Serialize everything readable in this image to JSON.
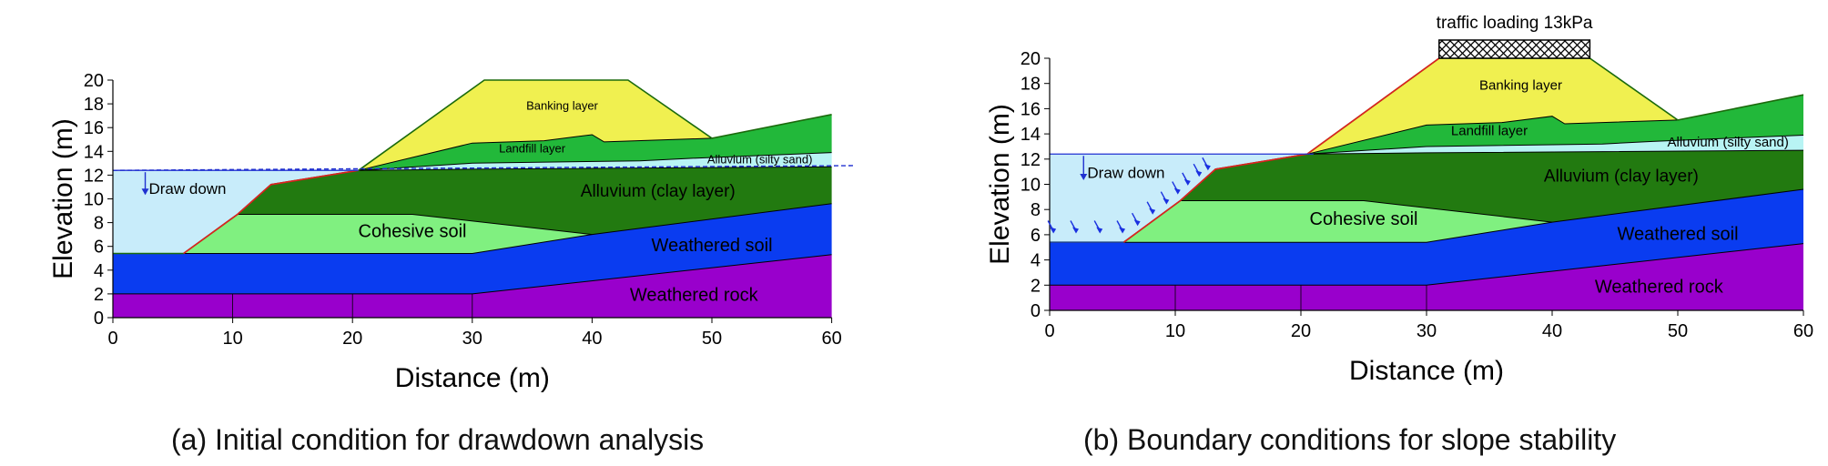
{
  "panels": [
    {
      "id": "a",
      "caption": "(a) Initial condition for drawdown analysis",
      "xlabel": "Distance (m)",
      "ylabel": "Elevation (m)",
      "xticks": [
        "0",
        "10",
        "20",
        "30",
        "40",
        "50",
        "60"
      ],
      "yticks": [
        "0",
        "2",
        "4",
        "6",
        "8",
        "10",
        "12",
        "14",
        "16",
        "18",
        "20"
      ],
      "xlim": [
        0,
        60
      ],
      "ylim": [
        0,
        20
      ],
      "water_initial_elevation": 12.4,
      "water_drawdown_elevation": 5.4,
      "layers": [
        {
          "name": "Weathered rock",
          "color": "#9900cc"
        },
        {
          "name": "Weathered soil",
          "color": "#0a3cf0"
        },
        {
          "name": "Cohesive soil",
          "color": "#80f080"
        },
        {
          "name": "Alluvium (clay layer)",
          "color": "#227a10"
        },
        {
          "name": "Alluvium (silty sand)",
          "color": "#b8f4f4"
        },
        {
          "name": "Landfill layer",
          "color": "#22b83a"
        },
        {
          "name": "Banking layer",
          "color": "#f0f050"
        }
      ],
      "labels": {
        "draw_down": "Draw down",
        "banking": "Banking layer",
        "landfill": "Landfill layer",
        "silty_sand": "Alluvium (silty sand)",
        "clay": "Alluvium (clay layer)",
        "cohesive": "Cohesive soil",
        "weathered_soil": "Weathered soil",
        "weathered_rock": "Weathered rock"
      }
    },
    {
      "id": "b",
      "caption": "(b) Boundary conditions for slope stability",
      "xlabel": "Distance (m)",
      "ylabel": "Elevation (m)",
      "xticks": [
        "0",
        "10",
        "20",
        "30",
        "40",
        "50",
        "60"
      ],
      "yticks": [
        "0",
        "2",
        "4",
        "6",
        "8",
        "10",
        "12",
        "14",
        "16",
        "18",
        "20"
      ],
      "xlim": [
        0,
        60
      ],
      "ylim": [
        0,
        20
      ],
      "water_initial_elevation": 12.4,
      "water_drawdown_elevation": 5.4,
      "traffic_load": "traffic loading 13kPa",
      "traffic_load_extent_m": [
        31,
        43
      ],
      "labels": {
        "draw_down": "Draw down",
        "banking": "Banking layer",
        "landfill": "Landfill layer",
        "silty_sand": "Alluvium (silty sand)",
        "clay": "Alluvium (clay layer)",
        "cohesive": "Cohesive soil",
        "weathered_soil": "Weathered soil",
        "weathered_rock": "Weathered rock"
      }
    }
  ]
}
